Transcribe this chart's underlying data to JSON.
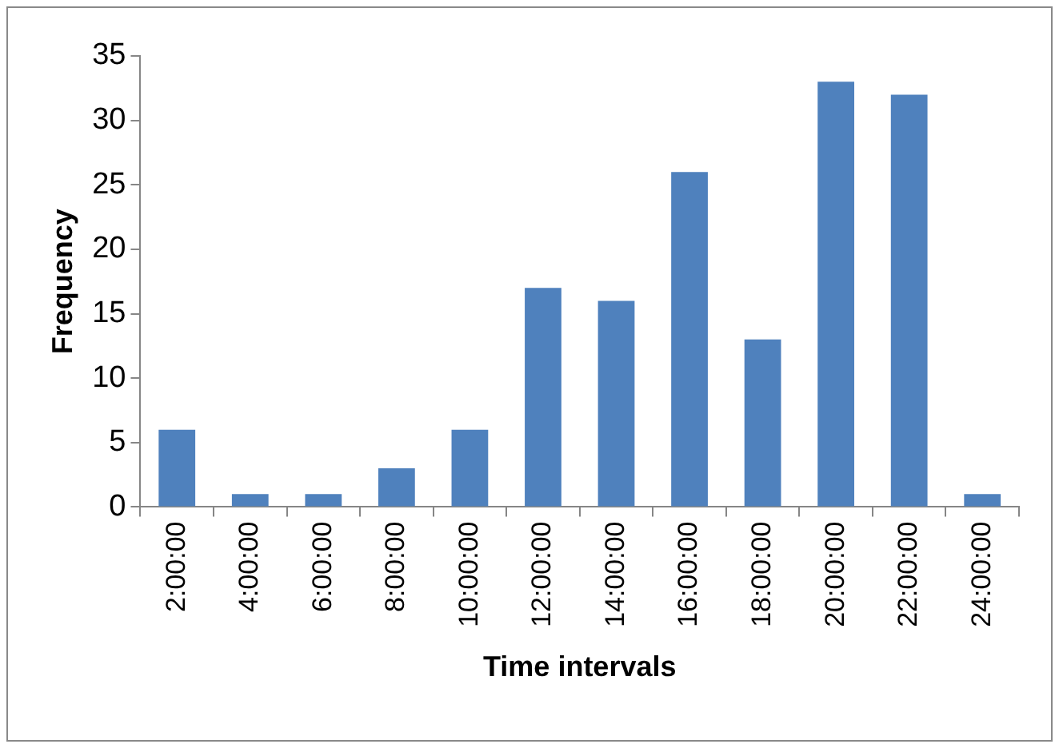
{
  "chart_data": {
    "type": "bar",
    "xlabel": "Time intervals",
    "ylabel": "Frequency",
    "categories": [
      "2:00:00",
      "4:00:00",
      "6:00:00",
      "8:00:00",
      "10:00:00",
      "12:00:00",
      "14:00:00",
      "16:00:00",
      "18:00:00",
      "20:00:00",
      "22:00:00",
      "24:00:00"
    ],
    "values": [
      6,
      1,
      1,
      3,
      6,
      17,
      16,
      26,
      13,
      33,
      32,
      1
    ],
    "color": "#4f81bd",
    "ylim": [
      0,
      35
    ],
    "yticks": [
      0,
      5,
      10,
      15,
      20,
      25,
      30,
      35
    ],
    "grid": false,
    "legend": false
  }
}
